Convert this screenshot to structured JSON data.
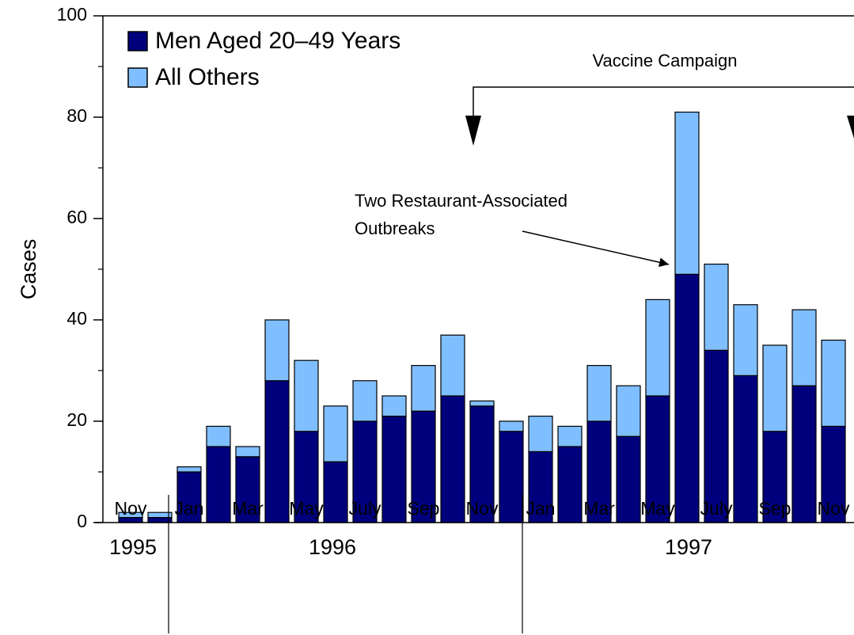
{
  "chart_data": {
    "type": "bar",
    "stacked": true,
    "y_label": "Cases",
    "categories": [
      "Nov",
      null,
      "Jan",
      null,
      "Mar",
      null,
      "May",
      null,
      "July",
      null,
      "Sep",
      null,
      "Nov",
      null,
      "Jan",
      null,
      "Mar",
      null,
      "May",
      null,
      "July",
      null,
      "Sep",
      null,
      "Nov"
    ],
    "year_labels": [
      "1995",
      "1996",
      "1997"
    ],
    "series": [
      {
        "name": "Men Aged 20–49 Years",
        "color": "#00007c",
        "values": [
          1,
          1,
          10,
          15,
          13,
          28,
          18,
          12,
          20,
          21,
          22,
          25,
          23,
          18,
          14,
          15,
          20,
          17,
          25,
          49,
          34,
          29,
          18,
          27,
          19
        ]
      },
      {
        "name": "All Others",
        "color": "#80bfff",
        "values": [
          1,
          1,
          1,
          4,
          2,
          12,
          14,
          11,
          8,
          4,
          9,
          12,
          1,
          2,
          7,
          4,
          11,
          10,
          19,
          32,
          17,
          14,
          17,
          15,
          17
        ]
      }
    ],
    "ylim": [
      0,
      100
    ],
    "yticks": [
      0,
      20,
      40,
      60,
      80,
      100
    ],
    "minor_yticks": [
      10,
      30,
      50,
      70,
      90
    ],
    "legend": "top-left",
    "annotations": [
      "Vaccine Campaign",
      "Two Restaurant-Associated",
      "Outbreaks"
    ]
  }
}
